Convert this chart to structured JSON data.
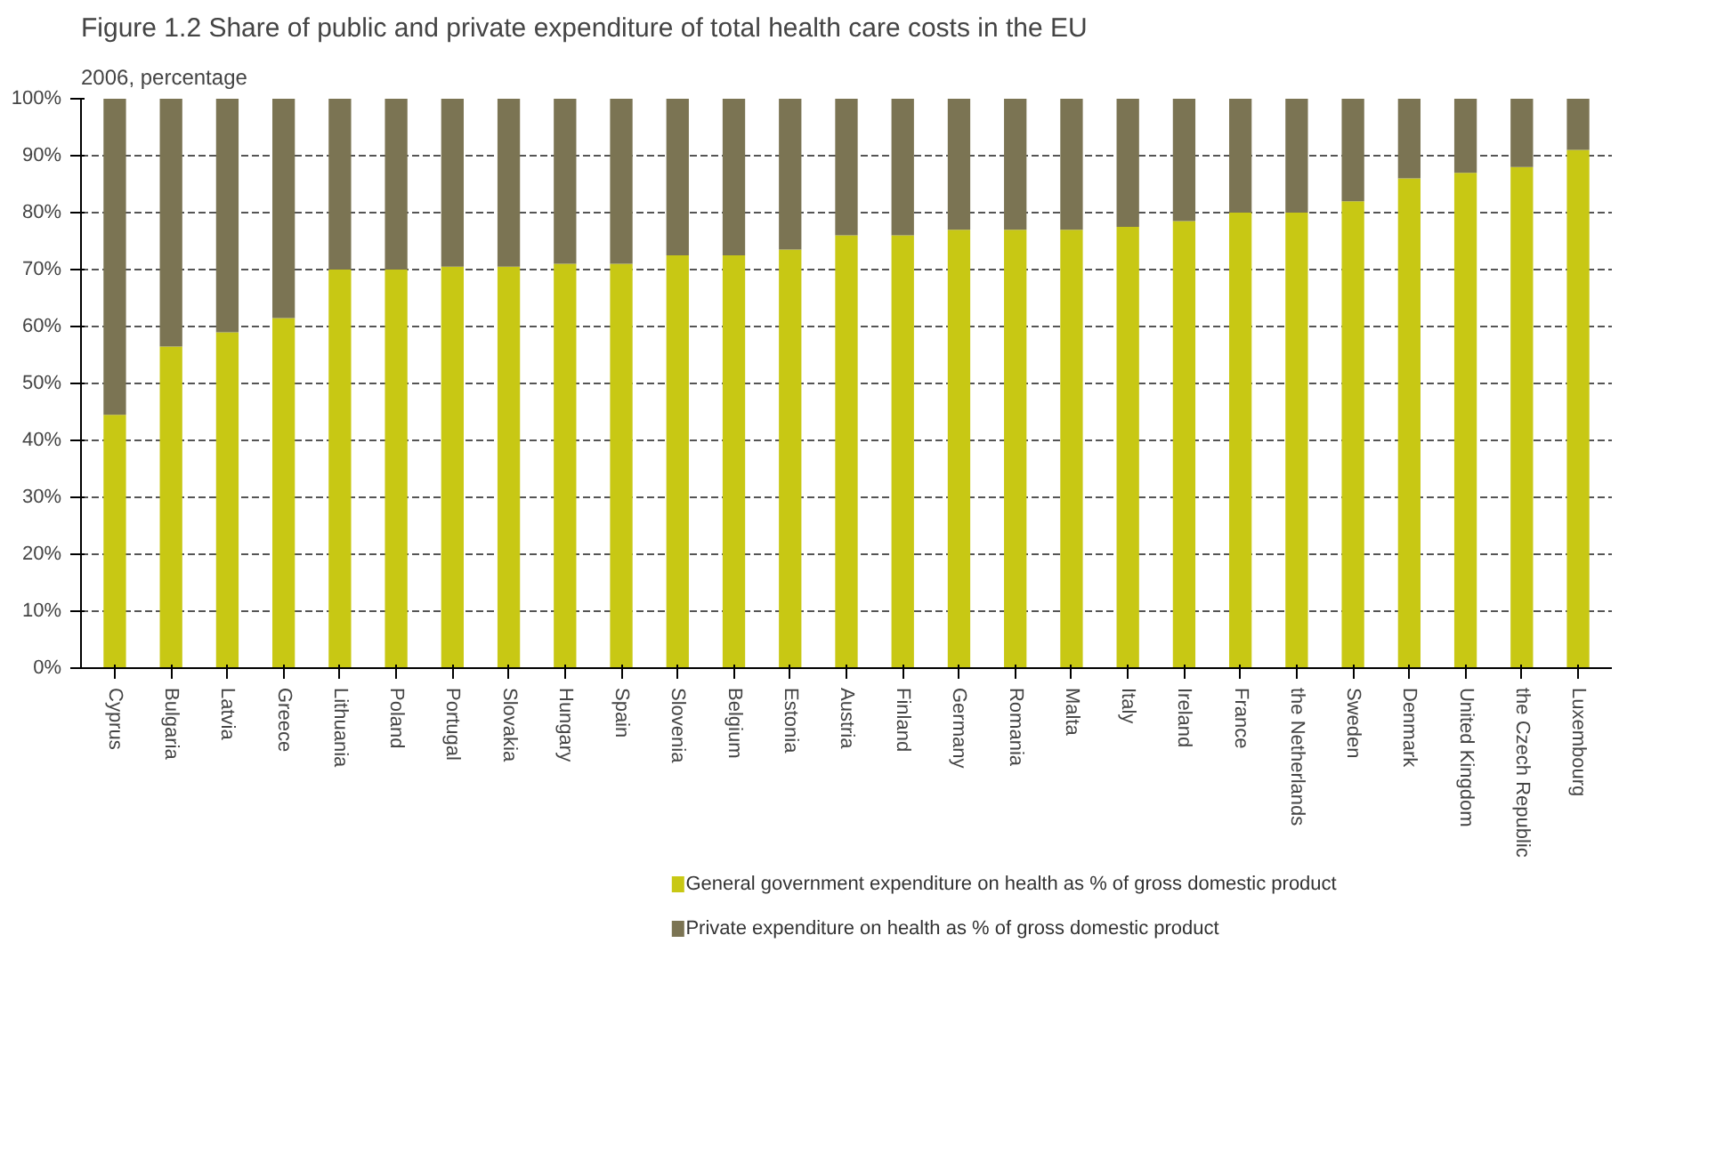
{
  "chart_data": {
    "type": "bar",
    "stacked": true,
    "title": "Figure 1.2 Share of public and private expenditure of total health care costs in the EU",
    "ylabel": "2006, percentage",
    "categories": [
      "Cyprus",
      "Bulgaria",
      "Latvia",
      "Greece",
      "Lithuania",
      "Poland",
      "Portugal",
      "Slovakia",
      "Hungary",
      "Spain",
      "Slovenia",
      "Belgium",
      "Estonia",
      "Austria",
      "Finland",
      "Germany",
      "Romania",
      "Malta",
      "Italy",
      "Ireland",
      "France",
      "the Netherlands",
      "Sweden",
      "Denmark",
      "United Kingdom",
      "the Czech Republic",
      "Luxembourg"
    ],
    "series": [
      {
        "name": "General government expenditure on health as % of gross domestic product",
        "color": "#c8c814",
        "values": [
          44.5,
          56.5,
          59,
          61.5,
          70,
          70,
          70.5,
          70.5,
          71,
          71,
          72.5,
          72.5,
          73.5,
          76,
          76,
          77,
          77,
          77,
          77.5,
          78.5,
          80,
          80,
          82,
          86,
          87,
          88,
          91
        ]
      },
      {
        "name": "Private expenditure on health as % of gross domestic product",
        "color": "#7b7453",
        "values": [
          55.5,
          43.5,
          41,
          38.5,
          30,
          30,
          29.5,
          29.5,
          29,
          29,
          27.5,
          27.5,
          26.5,
          24,
          24,
          23,
          23,
          23,
          22.5,
          21.5,
          20,
          20,
          18,
          14,
          13,
          12,
          9
        ]
      }
    ],
    "ylim": [
      0,
      100
    ],
    "yticks": [
      {
        "value": 0,
        "label": "0%"
      },
      {
        "value": 10,
        "label": "10%"
      },
      {
        "value": 20,
        "label": "20%"
      },
      {
        "value": 30,
        "label": "30%"
      },
      {
        "value": 40,
        "label": "40%"
      },
      {
        "value": 50,
        "label": "50%"
      },
      {
        "value": 60,
        "label": "60%"
      },
      {
        "value": 70,
        "label": "70%"
      },
      {
        "value": 80,
        "label": "80%"
      },
      {
        "value": 90,
        "label": "90%"
      },
      {
        "value": 100,
        "label": "100%"
      }
    ],
    "grid": "y",
    "legend": "bottom"
  }
}
